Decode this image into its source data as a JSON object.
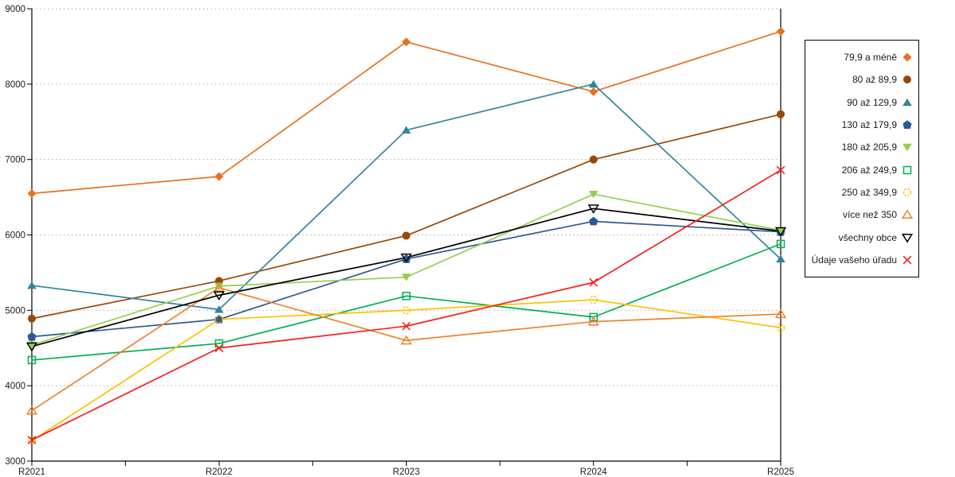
{
  "chart_data": {
    "type": "line",
    "title": "",
    "xlabel": "",
    "ylabel": "",
    "categories": [
      "R2021",
      "R2022",
      "R2023",
      "R2024",
      "R2025"
    ],
    "ylim": [
      3000,
      9000
    ],
    "yticks": [
      3000,
      4000,
      5000,
      6000,
      7000,
      8000,
      9000
    ],
    "grid": "horizontal-dashed",
    "legend_position": "right",
    "series": [
      {
        "name": "79,9 a méně",
        "marker": "diamond",
        "open": false,
        "color": "#E8711E",
        "values": [
          6550,
          6775,
          8560,
          7900,
          8700
        ]
      },
      {
        "name": "80 až 89,9",
        "marker": "circle",
        "open": false,
        "color": "#984807",
        "values": [
          4890,
          5390,
          5990,
          7000,
          7600
        ]
      },
      {
        "name": "90 až 129,9",
        "marker": "triangle-up",
        "open": false,
        "color": "#31859C",
        "values": [
          5330,
          5010,
          7390,
          8000,
          5680
        ]
      },
      {
        "name": "130 až 179,9",
        "marker": "pentagon",
        "open": false,
        "color": "#2D5A92",
        "values": [
          4650,
          4880,
          5680,
          6180,
          6040
        ]
      },
      {
        "name": "180 až 205,9",
        "marker": "triangle-down",
        "open": false,
        "color": "#92D050",
        "values": [
          4540,
          5320,
          5440,
          6540,
          6060
        ]
      },
      {
        "name": "206 až 249,9",
        "marker": "square",
        "open": true,
        "color": "#00B050",
        "values": [
          4340,
          4560,
          5190,
          4910,
          5880
        ]
      },
      {
        "name": "250 až 349,9",
        "marker": "circle-dashed",
        "open": true,
        "color": "#FFC000",
        "values": [
          3270,
          4880,
          5000,
          5140,
          4770
        ]
      },
      {
        "name": "více než 350",
        "marker": "triangle-up",
        "open": true,
        "color": "#F0812C",
        "values": [
          3670,
          5300,
          4600,
          4850,
          4950
        ]
      },
      {
        "name": "všechny obce",
        "marker": "triangle-down",
        "open": true,
        "color": "#000000",
        "values": [
          4520,
          5200,
          5700,
          6350,
          6050
        ]
      },
      {
        "name": "Údaje vašeho úřadu",
        "marker": "x",
        "open": true,
        "color": "#FA1E1E",
        "values": [
          3280,
          4500,
          4790,
          5370,
          6860
        ]
      }
    ]
  }
}
